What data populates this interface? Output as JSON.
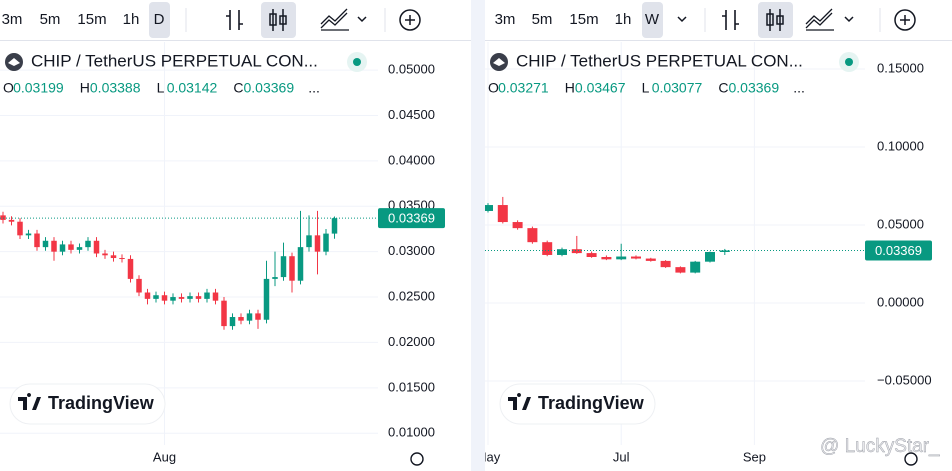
{
  "chart_data": [
    {
      "type": "candlestick",
      "intervals": [
        "3m",
        "5m",
        "15m",
        "1h"
      ],
      "selected_interval": "D",
      "title": "CHIP / TetherUS PERPETUAL CON...",
      "ohlc_labels": [
        "O",
        "H",
        "L",
        "C"
      ],
      "more": "...",
      "logo": "TradingView",
      "categories": [
        null,
        null,
        null,
        null,
        null,
        null,
        null,
        null,
        null,
        null,
        null,
        null,
        null,
        null,
        null,
        null,
        null,
        null,
        null,
        "Aug",
        null,
        null,
        null,
        null,
        null,
        null,
        null,
        null,
        null,
        null,
        null,
        null,
        null,
        null,
        null,
        null,
        null,
        null,
        null,
        null
      ],
      "open": [
        0.034,
        0.0335,
        0.0333,
        0.0318,
        0.032,
        0.0305,
        0.0312,
        0.03,
        0.0308,
        0.0302,
        0.0305,
        0.0312,
        0.0298,
        0.0296,
        0.0293,
        0.0292,
        0.027,
        0.0255,
        0.0248,
        0.0252,
        0.0246,
        0.025,
        0.0248,
        0.0251,
        0.0248,
        0.0255,
        0.0246,
        0.0218,
        0.0228,
        0.0224,
        0.0232,
        0.0225,
        0.027,
        0.0272,
        0.0295,
        0.0268,
        0.0305,
        0.0318,
        0.03,
        0.03199
      ],
      "high": [
        0.0344,
        0.0339,
        0.0337,
        0.0324,
        0.0324,
        0.0316,
        0.0316,
        0.0312,
        0.0312,
        0.0309,
        0.0316,
        0.0316,
        0.0302,
        0.03,
        0.0297,
        0.0296,
        0.0274,
        0.0259,
        0.0256,
        0.0256,
        0.0254,
        0.0254,
        0.0255,
        0.0255,
        0.0259,
        0.0259,
        0.025,
        0.0232,
        0.0232,
        0.0236,
        0.0236,
        0.029,
        0.03,
        0.031,
        0.0299,
        0.0345,
        0.034,
        0.0345,
        0.0325,
        0.03388
      ],
      "low": [
        0.0331,
        0.0329,
        0.0314,
        0.0314,
        0.0301,
        0.0301,
        0.029,
        0.0296,
        0.0298,
        0.0298,
        0.0301,
        0.0294,
        0.0292,
        0.0289,
        0.0288,
        0.0266,
        0.0251,
        0.0242,
        0.0244,
        0.0242,
        0.0242,
        0.0244,
        0.0244,
        0.0244,
        0.0244,
        0.0242,
        0.0214,
        0.0214,
        0.022,
        0.022,
        0.0215,
        0.0221,
        0.0262,
        0.0268,
        0.0255,
        0.0264,
        0.03,
        0.0275,
        0.0296,
        0.03142
      ],
      "close": [
        0.0335,
        0.0333,
        0.0318,
        0.032,
        0.0305,
        0.0312,
        0.03,
        0.0308,
        0.0302,
        0.0305,
        0.0312,
        0.0298,
        0.0296,
        0.0293,
        0.0292,
        0.027,
        0.0255,
        0.0248,
        0.0252,
        0.0246,
        0.025,
        0.0248,
        0.0251,
        0.0248,
        0.0255,
        0.0246,
        0.0218,
        0.0228,
        0.0224,
        0.0232,
        0.0225,
        0.027,
        0.0272,
        0.0295,
        0.0268,
        0.0305,
        0.0318,
        0.03,
        0.03199,
        0.03369
      ],
      "up_color": "#089981",
      "down_color": "#f23645",
      "ylim": [
        0.0087,
        0.0531
      ],
      "yticks": [
        {
          "value": 0.05,
          "label": "0.05000"
        },
        {
          "value": 0.045,
          "label": "0.04500"
        },
        {
          "value": 0.04,
          "label": "0.04000"
        },
        {
          "value": 0.035,
          "label": "0.03500"
        },
        {
          "value": 0.03,
          "label": "0.03000"
        },
        {
          "value": 0.025,
          "label": "0.02500"
        },
        {
          "value": 0.02,
          "label": "0.02000"
        },
        {
          "value": 0.015,
          "label": "0.01500"
        },
        {
          "value": 0.01,
          "label": "0.01000"
        }
      ],
      "grid": true,
      "last_price_line": true
    },
    {
      "type": "candlestick",
      "intervals": [
        "3m",
        "5m",
        "15m",
        "1h"
      ],
      "selected_interval": "W",
      "title": "CHIP / TetherUS PERPETUAL CON...",
      "ohlc_labels": [
        "O",
        "H",
        "L",
        "C"
      ],
      "more": "...",
      "logo": "TradingView",
      "categories": [
        "May",
        null,
        null,
        null,
        null,
        null,
        null,
        null,
        null,
        "Jul",
        null,
        null,
        null,
        null,
        null,
        null,
        null,
        null,
        "Sep"
      ],
      "open": [
        0.059,
        0.0628,
        0.0519,
        0.048,
        0.039,
        0.0308,
        0.0345,
        0.032,
        0.0295,
        0.028,
        0.0298,
        0.0285,
        0.027,
        0.023,
        0.0195,
        0.0265,
        0.03271,
        null,
        null
      ],
      "high": [
        0.064,
        0.068,
        0.053,
        0.049,
        0.04,
        0.0355,
        0.043,
        0.033,
        0.0305,
        0.038,
        0.0305,
        0.029,
        0.0275,
        0.0235,
        0.027,
        0.033,
        0.03467,
        null,
        null
      ],
      "low": [
        0.058,
        0.051,
        0.047,
        0.038,
        0.03,
        0.03,
        0.0315,
        0.029,
        0.0275,
        0.0275,
        0.028,
        0.0265,
        0.0225,
        0.019,
        0.019,
        0.026,
        0.03077,
        null,
        null
      ],
      "close": [
        0.0628,
        0.0519,
        0.048,
        0.039,
        0.0308,
        0.0345,
        0.032,
        0.0295,
        0.028,
        0.0298,
        0.0285,
        0.027,
        0.023,
        0.0195,
        0.0265,
        0.03271,
        0.03369,
        null,
        null
      ],
      "up_color": "#089981",
      "down_color": "#f23645",
      "ylim": [
        -0.091,
        0.1673
      ],
      "yticks": [
        {
          "value": 0.15,
          "label": "0.15000"
        },
        {
          "value": 0.1,
          "label": "0.10000"
        },
        {
          "value": 0.05,
          "label": "0.05000"
        },
        {
          "value": 0,
          "label": "0.00000"
        },
        {
          "value": -0.05,
          "label": "−0.05000"
        }
      ],
      "grid": true,
      "last_price_line": true
    }
  ],
  "watermark": "@ LuckyStar_"
}
